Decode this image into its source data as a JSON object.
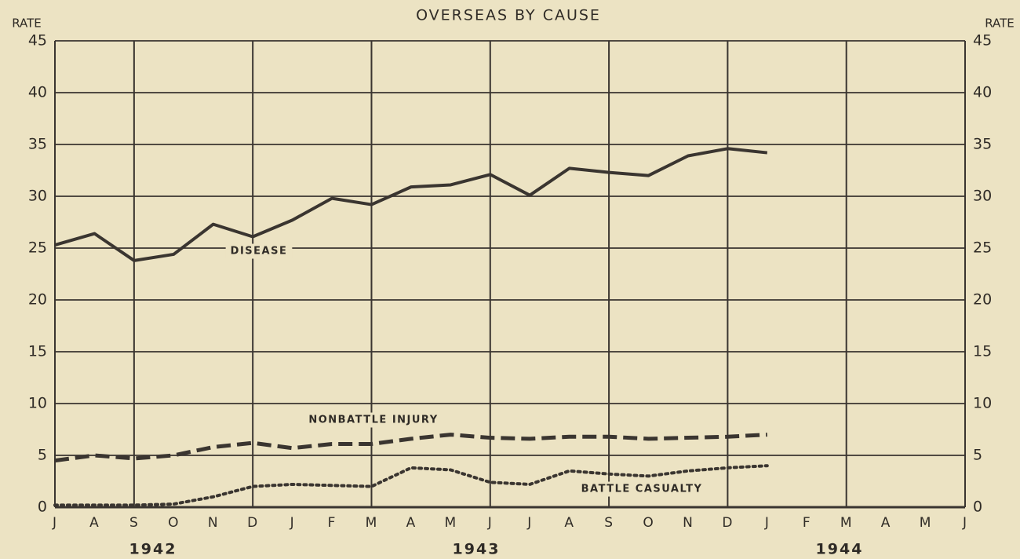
{
  "chart_data": {
    "type": "line",
    "title": "OVERSEAS BY CAUSE",
    "y_label": "RATE",
    "categories": [
      "J",
      "A",
      "S",
      "O",
      "N",
      "D",
      "J",
      "F",
      "M",
      "A",
      "M",
      "J",
      "J",
      "A",
      "S",
      "O",
      "N",
      "D",
      "J",
      "F",
      "M",
      "A",
      "M",
      "J"
    ],
    "years": [
      "1942",
      "1943",
      "1944"
    ],
    "ylim": [
      0,
      45
    ],
    "yticks": [
      0,
      5,
      10,
      15,
      20,
      25,
      30,
      35,
      40,
      45
    ],
    "grid": true,
    "series": [
      {
        "name": "DISEASE",
        "color": "#3a3530",
        "style": "solid",
        "values": [
          25.3,
          26.4,
          23.8,
          24.4,
          27.3,
          26.1,
          27.7,
          29.8,
          29.2,
          30.9,
          31.1,
          32.1,
          30.1,
          32.7,
          32.3,
          32.0,
          33.9,
          34.6,
          34.2,
          null,
          null,
          null,
          null,
          null
        ]
      },
      {
        "name": "NONBATTLE INJURY",
        "color": "#3a3530",
        "style": "dashed",
        "values": [
          4.5,
          5.0,
          4.7,
          5.0,
          5.8,
          6.2,
          5.7,
          6.1,
          6.1,
          6.6,
          7.0,
          6.7,
          6.6,
          6.8,
          6.8,
          6.6,
          6.7,
          6.8,
          7.0,
          null,
          null,
          null,
          null,
          null
        ]
      },
      {
        "name": "BATTLE CASUALTY",
        "color": "#3a3530",
        "style": "dotted",
        "values": [
          0.2,
          0.2,
          0.2,
          0.3,
          1.0,
          2.0,
          2.2,
          2.1,
          2.0,
          3.8,
          3.6,
          2.4,
          2.2,
          3.5,
          3.2,
          3.0,
          3.5,
          3.8,
          4.0,
          null,
          null,
          null,
          null,
          null
        ]
      }
    ]
  }
}
